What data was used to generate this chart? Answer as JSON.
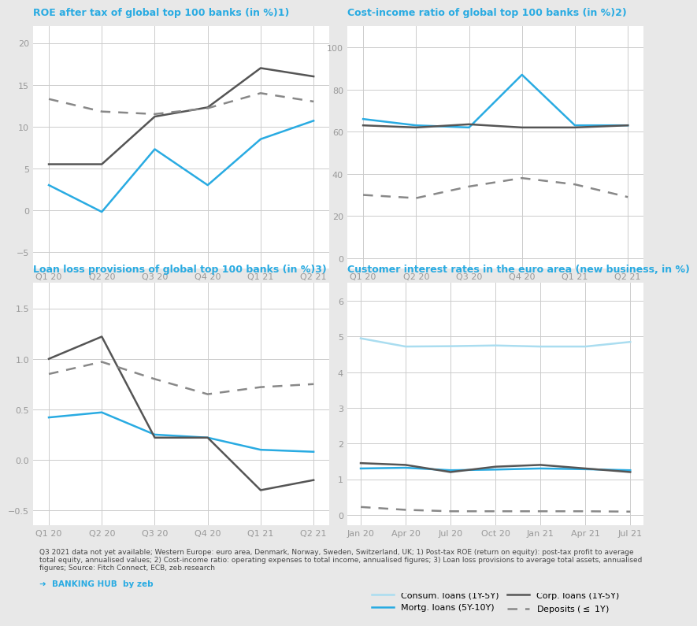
{
  "background_color": "#e8e8e8",
  "panel_bg": "#ffffff",
  "title_color": "#29abe2",
  "axis_color": "#999999",
  "grid_color": "#cccccc",
  "roe": {
    "title": "ROE after tax of global top 100 banks (in %)",
    "superscript": "1)",
    "x_labels": [
      "Q1 20",
      "Q2 20",
      "Q3 20",
      "Q4 20",
      "Q1 21",
      "Q2 21"
    ],
    "western_europe": [
      3.0,
      -0.2,
      7.3,
      3.0,
      8.5,
      10.7
    ],
    "united_states": [
      5.5,
      5.5,
      11.2,
      12.3,
      17.0,
      16.0
    ],
    "brics": [
      13.3,
      11.8,
      11.5,
      12.2,
      14.0,
      13.0
    ],
    "ylim": [
      -7,
      22
    ],
    "yticks": [
      -5,
      0,
      5,
      10,
      15,
      20
    ]
  },
  "cir": {
    "title": "Cost-income ratio of global top 100 banks (in %)",
    "superscript": "2)",
    "x_labels": [
      "Q1 20",
      "Q2 20",
      "Q3 20",
      "Q4 20",
      "Q1 21",
      "Q2 21"
    ],
    "western_europe": [
      66.0,
      63.0,
      62.0,
      87.0,
      63.0,
      63.0
    ],
    "united_states": [
      63.0,
      62.0,
      63.5,
      62.0,
      62.0,
      63.0
    ],
    "brics": [
      30.0,
      28.5,
      34.0,
      38.0,
      35.0,
      29.0
    ],
    "ylim": [
      -5,
      110
    ],
    "yticks": [
      0,
      20,
      40,
      60,
      80,
      100
    ]
  },
  "llp": {
    "title": "Loan loss provisions of global top 100 banks (in %)",
    "superscript": "3)",
    "x_labels": [
      "Q1 20",
      "Q2 20",
      "Q3 20",
      "Q4 20",
      "Q1 21",
      "Q2 21"
    ],
    "western_europe": [
      0.42,
      0.47,
      0.25,
      0.22,
      0.1,
      0.08
    ],
    "united_states": [
      1.0,
      1.22,
      0.22,
      0.22,
      -0.3,
      -0.2
    ],
    "brics": [
      0.85,
      0.97,
      0.8,
      0.65,
      0.72,
      0.75
    ],
    "ylim": [
      -0.65,
      1.75
    ],
    "yticks": [
      -0.5,
      0.0,
      0.5,
      1.0,
      1.5
    ]
  },
  "cir4": {
    "title": "Customer interest rates in the euro area (new business, in %)",
    "x_labels": [
      "Jan 20",
      "Apr 20",
      "Jul 20",
      "Oct 20",
      "Jan 21",
      "Apr 21",
      "Jul 21"
    ],
    "consum_loans": [
      4.95,
      4.72,
      4.73,
      4.75,
      4.72,
      4.72,
      4.85
    ],
    "mortg_loans": [
      1.3,
      1.32,
      1.25,
      1.27,
      1.3,
      1.28,
      1.25
    ],
    "corp_loans": [
      1.45,
      1.4,
      1.2,
      1.35,
      1.4,
      1.3,
      1.2
    ],
    "deposits": [
      0.22,
      0.14,
      0.1,
      0.1,
      0.1,
      0.1,
      0.09
    ],
    "ylim": [
      -0.3,
      6.5
    ],
    "yticks": [
      0.0,
      1.0,
      2.0,
      3.0,
      4.0,
      5.0,
      6.0
    ]
  },
  "footer_text": "Q3 2021 data not yet available; Western Europe: euro area, Denmark, Norway, Sweden, Switzerland, UK; 1) Post-tax ROE (return on equity): post-tax profit to average\ntotal equity, annualised values; 2) Cost-income ratio: operating expenses to total income, annualised figures; 3) Loan loss provisions to average total assets, annualised\nfigures; Source: Fitch Connect, ECB, zeb.research",
  "we_color": "#29abe2",
  "us_color": "#555555",
  "brics_color": "#888888",
  "consum_color": "#aaddf0",
  "mortg_color": "#29abe2",
  "corp_color": "#555555",
  "dep_color": "#888888"
}
